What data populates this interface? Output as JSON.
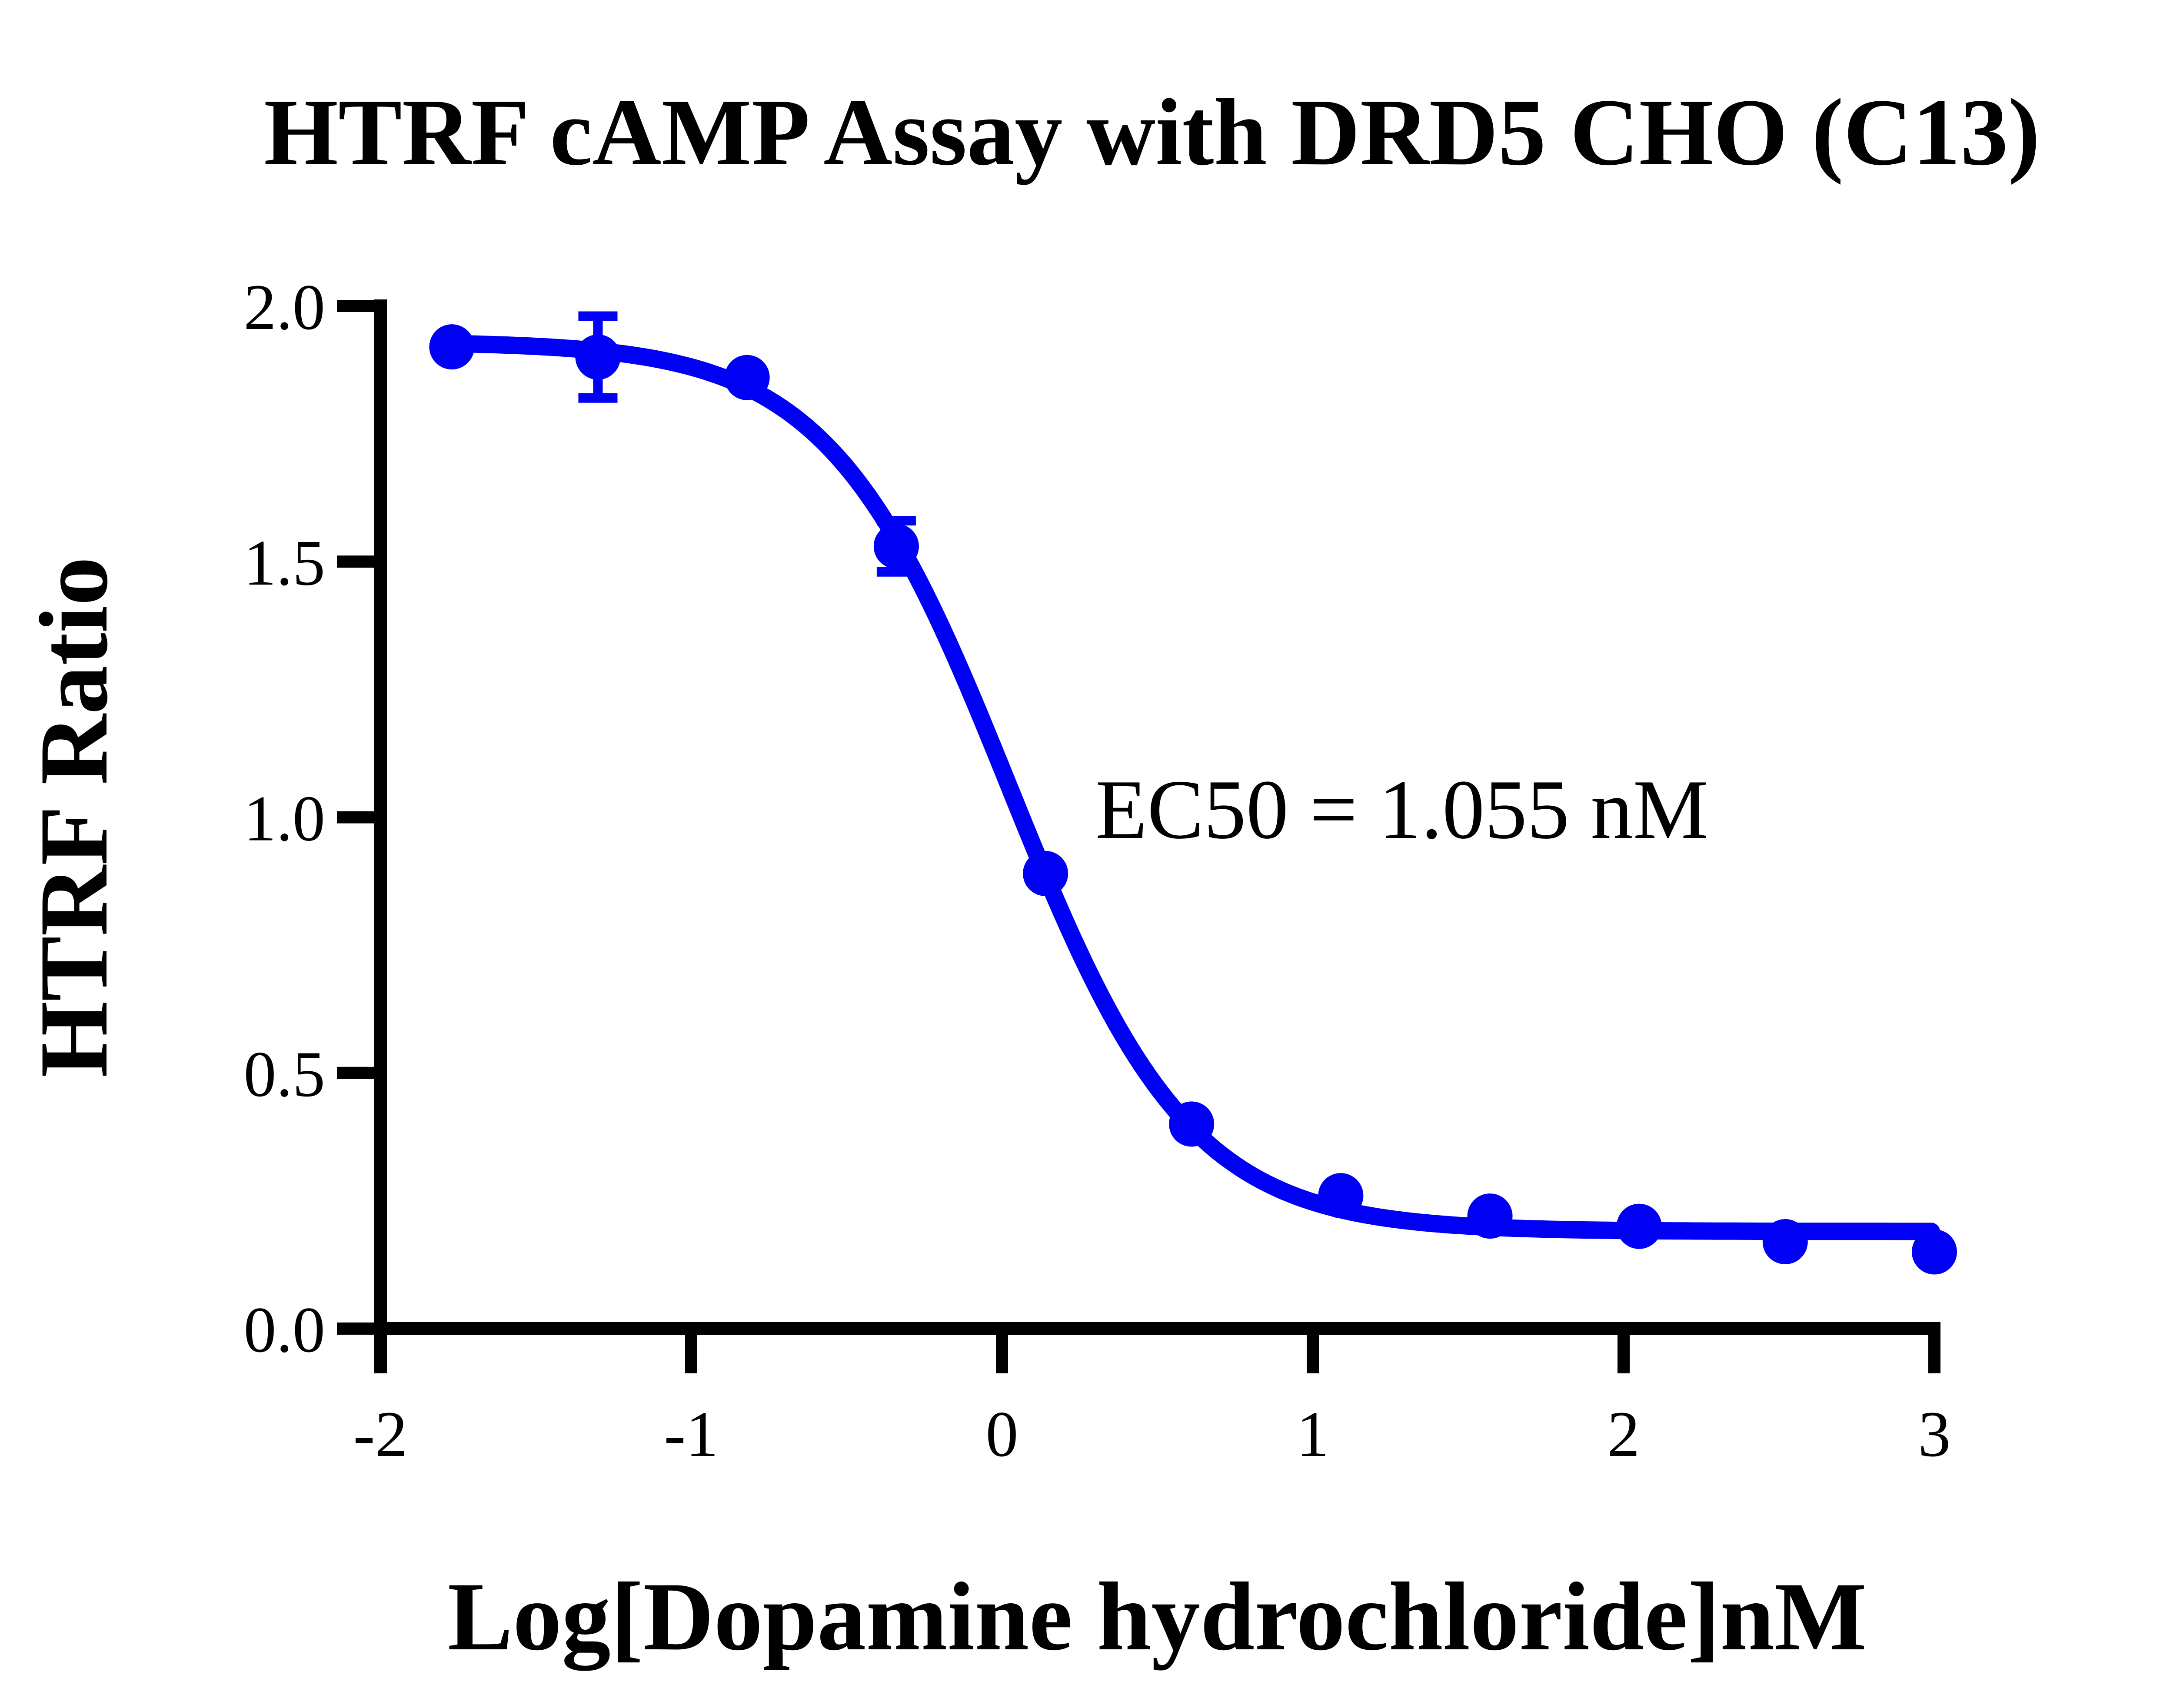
{
  "title": "HTRF cAMP Assay with DRD5 CHO (C13)",
  "colors": {
    "series_blue": "#0000F5",
    "axis_black": "#000000",
    "background": "#FFFFFF"
  },
  "chart_data": {
    "type": "scatter",
    "title": "HTRF cAMP Assay with DRD5 CHO (C13)",
    "xlabel": "Log[Dopamine hydrochloride]nM",
    "ylabel": "HTRF Ratio",
    "xlim": [
      -2,
      3
    ],
    "ylim": [
      0.0,
      2.0
    ],
    "grid": false,
    "legend": "none",
    "x_ticks": [
      -2,
      -1,
      0,
      1,
      2,
      3
    ],
    "x_tick_labels": [
      "-2",
      "-1",
      "0",
      "1",
      "2",
      "3"
    ],
    "y_ticks": [
      0.0,
      0.5,
      1.0,
      1.5,
      2.0
    ],
    "y_tick_labels": [
      "0.0",
      "0.5",
      "1.0",
      "1.5",
      "2.0"
    ],
    "annotation": {
      "text": "EC50 = 1.055 nM",
      "x_log": 0.3,
      "y_value": 0.96
    },
    "ec50_nM": 1.055,
    "series": [
      {
        "name": "Dopamine hydrochloride",
        "marker": "circle",
        "color": "#0000F5",
        "points": [
          {
            "x": -1.77,
            "y": 1.92,
            "err": 0
          },
          {
            "x": -1.3,
            "y": 1.9,
            "err": 0.08
          },
          {
            "x": -0.82,
            "y": 1.86,
            "err": 0
          },
          {
            "x": -0.34,
            "y": 1.53,
            "err": 0.05
          },
          {
            "x": 0.14,
            "y": 0.89,
            "err": 0
          },
          {
            "x": 0.61,
            "y": 0.4,
            "err": 0
          },
          {
            "x": 1.09,
            "y": 0.26,
            "err": 0
          },
          {
            "x": 1.57,
            "y": 0.22,
            "err": 0
          },
          {
            "x": 2.05,
            "y": 0.2,
            "err": 0
          },
          {
            "x": 2.52,
            "y": 0.17,
            "err": 0
          },
          {
            "x": 3.0,
            "y": 0.15,
            "err": 0
          }
        ]
      }
    ],
    "fit": {
      "model": "4PL sigmoid",
      "top": 1.93,
      "bottom": 0.19,
      "log_ec50": 0.023,
      "hill": 1.5,
      "x_start": -1.77,
      "x_end": 3.0
    }
  }
}
